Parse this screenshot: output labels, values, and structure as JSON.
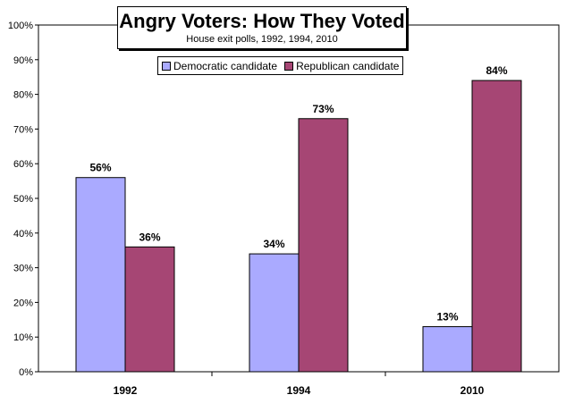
{
  "colors": {
    "democratic": "#aaaaff",
    "republican": "#a64674",
    "grid": "#000000",
    "background": "#ffffff"
  },
  "title": "Angry Voters: How They Voted",
  "subtitle": "House exit polls, 1992, 1994, 2010",
  "legend": [
    {
      "label": "Democratic candidate",
      "color": "#aaaaff"
    },
    {
      "label": "Republican candidate",
      "color": "#a64674"
    }
  ],
  "chart_data": {
    "type": "bar",
    "title": "Angry Voters: How They Voted",
    "subtitle": "House exit polls, 1992, 1994, 2010",
    "categories": [
      "1992",
      "1994",
      "2010"
    ],
    "series": [
      {
        "name": "Democratic candidate",
        "values": [
          56,
          34,
          13
        ],
        "labels": [
          "56%",
          "34%",
          "13%"
        ]
      },
      {
        "name": "Republican candidate",
        "values": [
          36,
          73,
          84
        ],
        "labels": [
          "36%",
          "73%",
          "84%"
        ]
      }
    ],
    "ylim": [
      0,
      100
    ],
    "yticks": [
      "0%",
      "10%",
      "20%",
      "30%",
      "40%",
      "50%",
      "60%",
      "70%",
      "80%",
      "90%",
      "100%"
    ],
    "grid": false,
    "legend_position": "top-center"
  }
}
